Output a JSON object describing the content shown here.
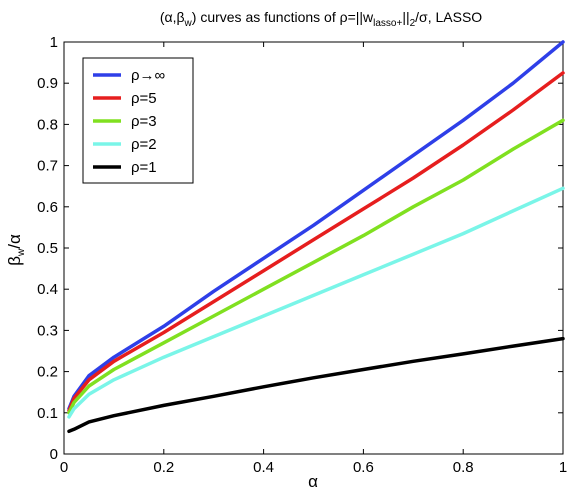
{
  "chart_data": {
    "type": "line",
    "title": {
      "p1": "(α,β",
      "p1_sub": "w",
      "p2": ") curves as functions of ρ=||w",
      "p2_sub": "lasso+",
      "p3": "||",
      "p3_sub": "2",
      "p4": "/σ, LASSO"
    },
    "xlabel": "α",
    "ylabel": {
      "main": "β",
      "sub": "w",
      "rest": "/α"
    },
    "xlim": [
      0,
      1
    ],
    "ylim": [
      0,
      1
    ],
    "x_ticks": [
      "0",
      "0.2",
      "0.4",
      "0.6",
      "0.8",
      "1"
    ],
    "y_ticks": [
      "0",
      "0.1",
      "0.2",
      "0.3",
      "0.4",
      "0.5",
      "0.6",
      "0.7",
      "0.8",
      "0.9",
      "1"
    ],
    "legend_position": "top-left",
    "series": [
      {
        "name": "ρ→∞",
        "color": "#2e3fe8",
        "x": [
          0.01,
          0.02,
          0.05,
          0.1,
          0.2,
          0.3,
          0.4,
          0.5,
          0.6,
          0.7,
          0.8,
          0.9,
          1.0
        ],
        "y": [
          0.11,
          0.14,
          0.19,
          0.235,
          0.31,
          0.395,
          0.475,
          0.555,
          0.64,
          0.725,
          0.81,
          0.9,
          1.0
        ]
      },
      {
        "name": "ρ=5",
        "color": "#e61e1e",
        "x": [
          0.01,
          0.02,
          0.05,
          0.1,
          0.2,
          0.3,
          0.4,
          0.5,
          0.6,
          0.7,
          0.8,
          0.9,
          1.0
        ],
        "y": [
          0.105,
          0.135,
          0.18,
          0.225,
          0.295,
          0.37,
          0.445,
          0.52,
          0.595,
          0.67,
          0.75,
          0.835,
          0.925
        ]
      },
      {
        "name": "ρ=3",
        "color": "#80e020",
        "x": [
          0.01,
          0.02,
          0.05,
          0.1,
          0.2,
          0.3,
          0.4,
          0.5,
          0.6,
          0.7,
          0.8,
          0.9,
          1.0
        ],
        "y": [
          0.1,
          0.125,
          0.165,
          0.205,
          0.27,
          0.335,
          0.4,
          0.465,
          0.53,
          0.6,
          0.665,
          0.74,
          0.81
        ]
      },
      {
        "name": "ρ=2",
        "color": "#7af5e8",
        "x": [
          0.01,
          0.02,
          0.05,
          0.1,
          0.2,
          0.3,
          0.4,
          0.5,
          0.6,
          0.7,
          0.8,
          0.9,
          1.0
        ],
        "y": [
          0.09,
          0.11,
          0.145,
          0.18,
          0.235,
          0.285,
          0.335,
          0.385,
          0.435,
          0.485,
          0.535,
          0.59,
          0.645
        ]
      },
      {
        "name": "ρ=1",
        "color": "#000000",
        "x": [
          0.01,
          0.02,
          0.05,
          0.1,
          0.2,
          0.3,
          0.4,
          0.5,
          0.6,
          0.7,
          0.8,
          0.9,
          1.0
        ],
        "y": [
          0.055,
          0.06,
          0.078,
          0.093,
          0.118,
          0.14,
          0.163,
          0.185,
          0.205,
          0.225,
          0.243,
          0.262,
          0.28
        ]
      }
    ]
  }
}
